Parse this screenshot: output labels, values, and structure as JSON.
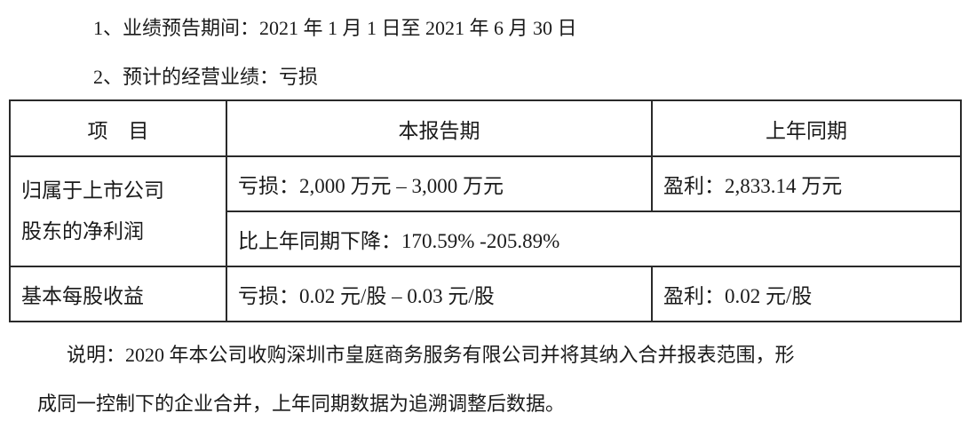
{
  "intro": {
    "line1": "1、业绩预告期间：2021 年 1 月 1 日至 2021 年 6 月 30 日",
    "line2": "2、预计的经营业绩：亏损"
  },
  "table": {
    "headers": [
      "项　目",
      "本报告期",
      "上年同期"
    ],
    "net_profit": {
      "label": "归属于上市公司股东的净利润",
      "label_line1": "归属于上市公司",
      "label_line2": "股东的净利润",
      "current": "亏损：2,000 万元 – 3,000 万元",
      "prior": "盈利：2,833.14 万元",
      "change": "比上年同期下降：170.59% -205.89%"
    },
    "eps": {
      "label": "基本每股收益",
      "current": "亏损：0.02 元/股 – 0.03 元/股",
      "prior": "盈利：0.02 元/股"
    }
  },
  "note": {
    "line1": "说明：2020 年本公司收购深圳市皇庭商务服务有限公司并将其纳入合并报表范围，形",
    "line2": "成同一控制下的企业合并，上年同期数据为追溯调整后数据。"
  }
}
